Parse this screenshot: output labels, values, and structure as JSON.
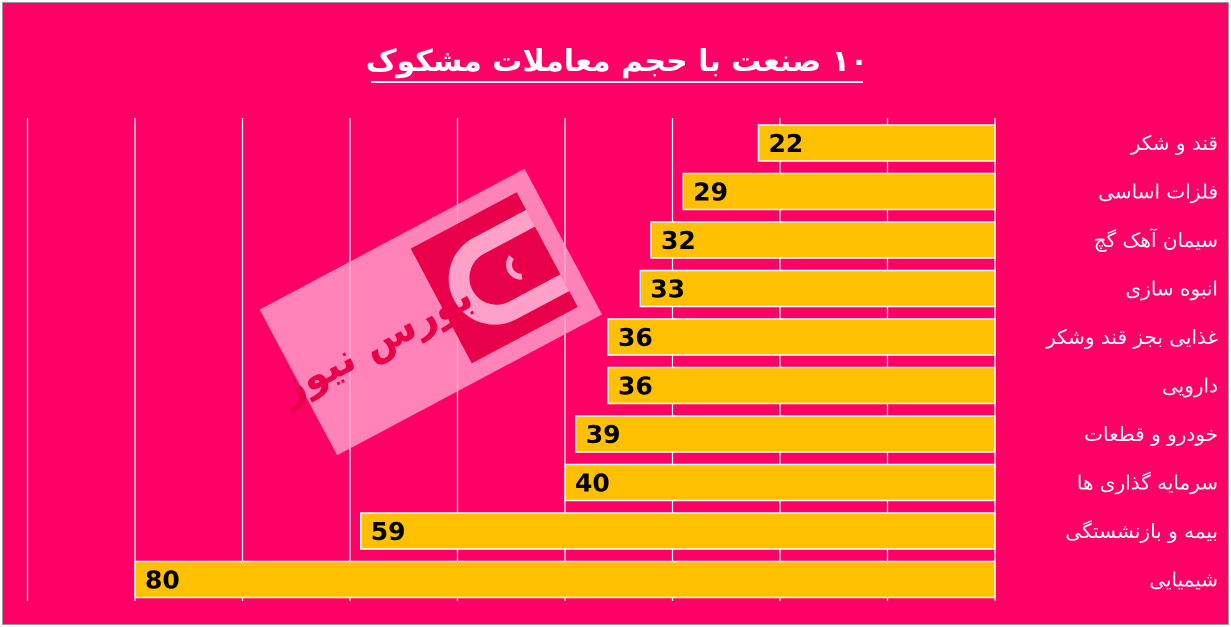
{
  "colors": {
    "background": "#ff0066",
    "bar": "#ffc000",
    "bar_border": "#ffffff",
    "gridline": "#ffffff",
    "title": "#ffffff",
    "category_text": "#ffffff",
    "value_text": "#000000",
    "watermark_panel": "#ffa0c8",
    "watermark_logo": "#e8004a"
  },
  "watermark": {
    "text": "بورس نیوز",
    "logo_icon": "bourse-news-logo-icon"
  },
  "chart_data": {
    "type": "bar",
    "orientation": "horizontal",
    "direction": "right-to-left",
    "title": "۱۰ صنعت با حجم معاملات مشکوک",
    "xlabel": "",
    "ylabel": "",
    "xlim": [
      0,
      90
    ],
    "grid": true,
    "legend": "none",
    "categories": [
      "قند و شکر",
      "فلزات اساسی",
      "سیمان آهک گچ",
      "انبوه سازی",
      "غذایی بجز قند وشکر",
      "دارویی",
      "خودرو و قطعات",
      "سرمایه گذاری ها",
      "بیمه و بازنشستگی",
      "شیمیایی"
    ],
    "values": [
      22,
      29,
      32,
      33,
      36,
      36,
      39,
      40,
      59,
      80
    ]
  }
}
